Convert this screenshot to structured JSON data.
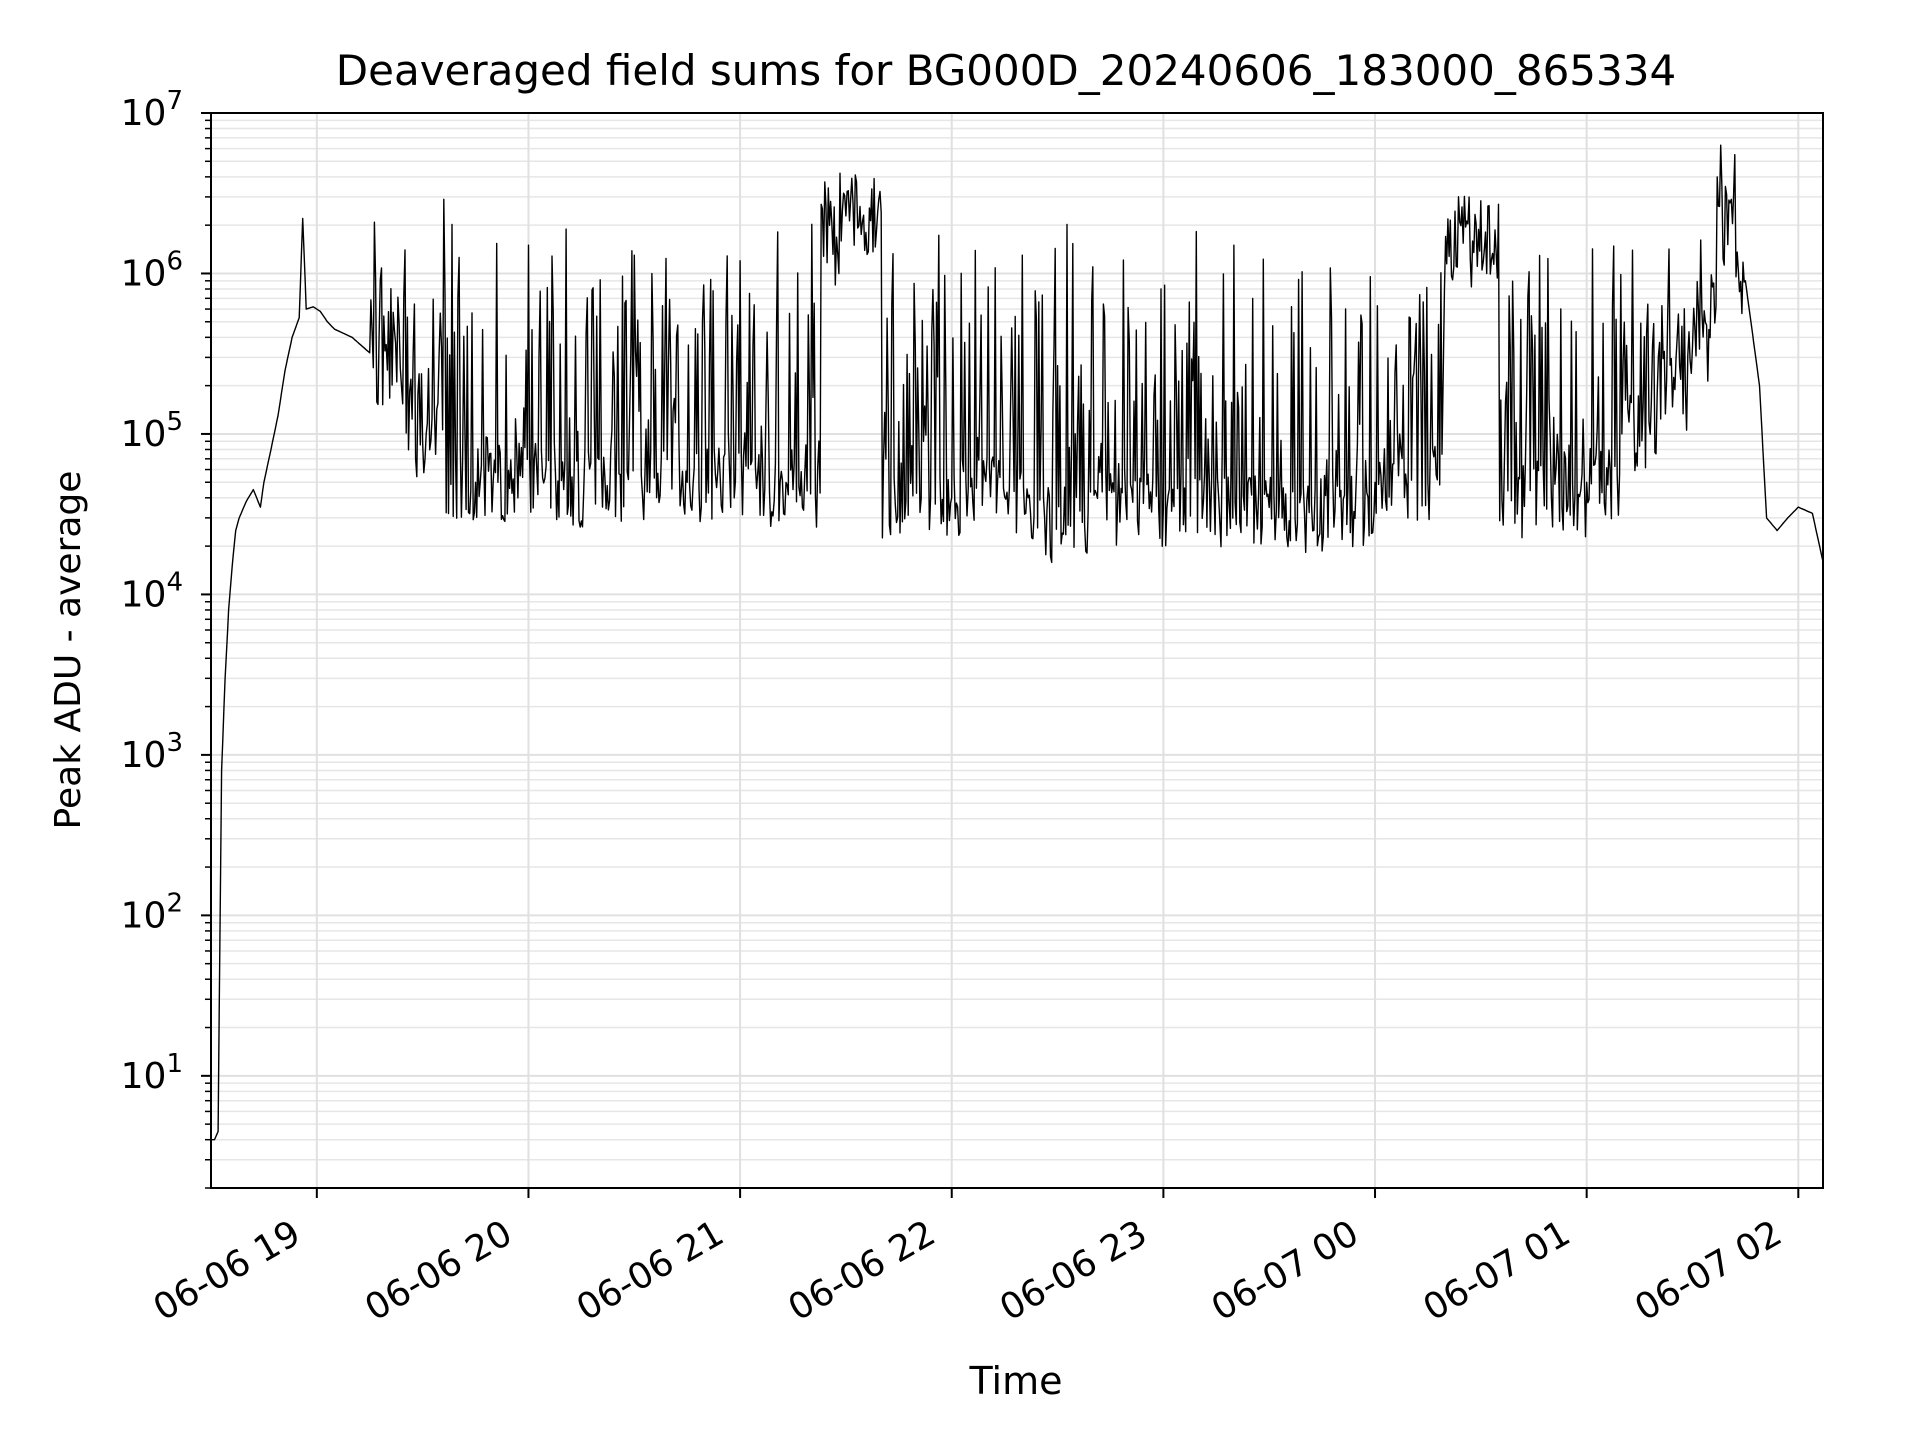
{
  "chart_data": {
    "type": "line",
    "title": "Deaveraged field sums for BG000D_20240606_183000_865334",
    "xlabel": "Time",
    "ylabel": "Peak ADU - average",
    "y_scale": "log",
    "ylim": [
      2,
      10000000
    ],
    "xlim": [
      "2024-06-06 18:30",
      "2024-06-07 02:07"
    ],
    "grid": "on (major and minor)",
    "x_ticks": [
      {
        "value": "2024-06-06 19:00",
        "label": "06-06 19"
      },
      {
        "value": "2024-06-06 20:00",
        "label": "06-06 20"
      },
      {
        "value": "2024-06-06 21:00",
        "label": "06-06 21"
      },
      {
        "value": "2024-06-06 22:00",
        "label": "06-06 22"
      },
      {
        "value": "2024-06-06 23:00",
        "label": "06-06 23"
      },
      {
        "value": "2024-06-07 00:00",
        "label": "06-07 00"
      },
      {
        "value": "2024-06-07 01:00",
        "label": "06-07 01"
      },
      {
        "value": "2024-06-07 02:00",
        "label": "06-07 02"
      }
    ],
    "y_ticks": [
      {
        "value": 10,
        "base": "10",
        "exp": "1"
      },
      {
        "value": 100,
        "base": "10",
        "exp": "2"
      },
      {
        "value": 1000,
        "base": "10",
        "exp": "3"
      },
      {
        "value": 10000,
        "base": "10",
        "exp": "4"
      },
      {
        "value": 100000,
        "base": "10",
        "exp": "5"
      },
      {
        "value": 1000000,
        "base": "10",
        "exp": "6"
      },
      {
        "value": 10000000,
        "base": "10",
        "exp": "7"
      }
    ],
    "series": [
      {
        "color": "#000000",
        "points": [
          [
            "2024-06-06 18:30",
            4
          ],
          [
            "2024-06-06 18:31",
            4
          ],
          [
            "2024-06-06 18:32",
            4.5
          ],
          [
            "2024-06-06 18:33",
            800
          ],
          [
            "2024-06-06 18:34",
            3000
          ],
          [
            "2024-06-06 18:35",
            8000
          ],
          [
            "2024-06-06 18:36",
            15000
          ],
          [
            "2024-06-06 18:37",
            25000
          ],
          [
            "2024-06-06 18:38",
            30000
          ],
          [
            "2024-06-06 18:40",
            38000
          ],
          [
            "2024-06-06 18:42",
            45000
          ],
          [
            "2024-06-06 18:44",
            35000
          ],
          [
            "2024-06-06 18:45",
            50000
          ],
          [
            "2024-06-06 18:47",
            80000
          ],
          [
            "2024-06-06 18:49",
            130000
          ],
          [
            "2024-06-06 18:51",
            250000
          ],
          [
            "2024-06-06 18:53",
            400000
          ],
          [
            "2024-06-06 18:55",
            530000
          ],
          [
            "2024-06-06 18:56",
            2200000
          ],
          [
            "2024-06-06 18:57",
            600000
          ],
          [
            "2024-06-06 18:59",
            620000
          ],
          [
            "2024-06-06 19:01",
            580000
          ],
          [
            "2024-06-06 19:03",
            500000
          ],
          [
            "2024-06-06 19:05",
            450000
          ],
          [
            "2024-06-06 19:10",
            400000
          ],
          [
            "2024-06-06 19:15",
            320000
          ],
          [
            "2024-06-06 19:20",
            250000
          ],
          [
            "2024-06-06 19:25",
            1400000
          ],
          [
            "2024-06-06 19:30",
            90000
          ],
          [
            "2024-06-06 19:36",
            2900000
          ],
          [
            "2024-06-06 19:45",
            50000
          ],
          [
            "2024-06-06 20:00",
            1500000
          ],
          [
            "2024-06-06 20:10",
            45000
          ],
          [
            "2024-06-06 20:30",
            1300000
          ],
          [
            "2024-06-06 20:45",
            50000
          ],
          [
            "2024-06-06 21:00",
            1200000
          ],
          [
            "2024-06-06 21:15",
            45000
          ],
          [
            "2024-06-06 21:23",
            2700000
          ],
          [
            "2024-06-06 21:40",
            2400000
          ],
          [
            "2024-06-06 22:00",
            40000
          ],
          [
            "2024-06-06 22:20",
            1300000
          ],
          [
            "2024-06-06 22:33",
            27000
          ],
          [
            "2024-06-06 22:40",
            1100000
          ],
          [
            "2024-06-06 23:00",
            35000
          ],
          [
            "2024-06-06 23:20",
            1500000
          ],
          [
            "2024-06-06 23:40",
            32000
          ],
          [
            "2024-06-07 00:00",
            50000
          ],
          [
            "2024-06-07 00:20",
            1700000
          ],
          [
            "2024-06-07 00:35",
            2700000
          ],
          [
            "2024-06-07 00:50",
            40000
          ],
          [
            "2024-06-07 01:00",
            50000
          ],
          [
            "2024-06-07 01:10",
            100000
          ],
          [
            "2024-06-07 01:20",
            180000
          ],
          [
            "2024-06-07 01:30",
            350000
          ],
          [
            "2024-06-07 01:37",
            4000000
          ],
          [
            "2024-06-07 01:42",
            5500000
          ],
          [
            "2024-06-07 01:45",
            900000
          ],
          [
            "2024-06-07 01:49",
            200000
          ],
          [
            "2024-06-07 01:51",
            30000
          ],
          [
            "2024-06-07 01:54",
            25000
          ],
          [
            "2024-06-07 01:57",
            30000
          ],
          [
            "2024-06-07 02:00",
            35000
          ],
          [
            "2024-06-07 02:04",
            32000
          ],
          [
            "2024-06-07 02:07",
            16000
          ]
        ]
      }
    ]
  }
}
